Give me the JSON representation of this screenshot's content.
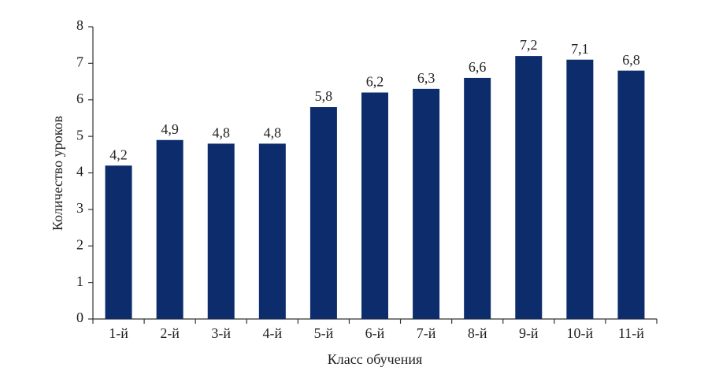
{
  "chart_data": {
    "type": "bar",
    "x_label": "Класс обучения",
    "y_label": "Количество уроков",
    "categories": [
      "1-й",
      "2-й",
      "3-й",
      "4-й",
      "5-й",
      "6-й",
      "7-й",
      "8-й",
      "9-й",
      "10-й",
      "11-й"
    ],
    "values": [
      4.2,
      4.9,
      4.8,
      4.8,
      5.8,
      6.2,
      6.3,
      6.6,
      7.2,
      7.1,
      6.8
    ],
    "value_labels": [
      "4,2",
      "4,9",
      "4,8",
      "4,8",
      "5,8",
      "6,2",
      "6,3",
      "6,6",
      "7,2",
      "7,1",
      "6,8"
    ],
    "color": "#0c2c6c",
    "ylim": [
      0,
      8
    ],
    "yticks": [
      0,
      1,
      2,
      3,
      4,
      5,
      6,
      7,
      8
    ],
    "grid": false
  }
}
